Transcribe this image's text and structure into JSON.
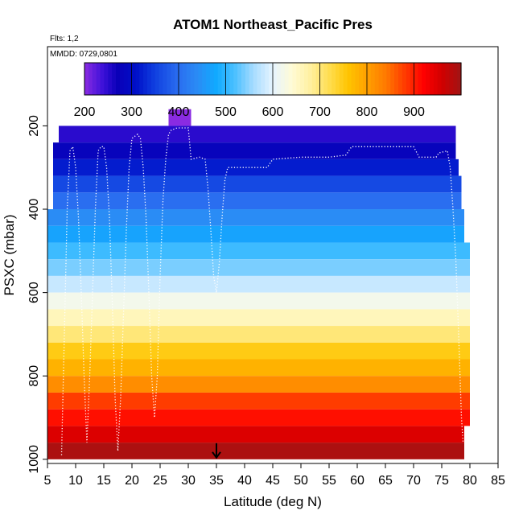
{
  "chart_data": {
    "type": "heatmap",
    "title": "ATOM1 Northeast_Pacific Pres",
    "subtitle": "Flts: 1,2",
    "annotation": "MMDD: 0729,0801",
    "xlabel": "Latitude (deg N)",
    "ylabel": "PSXC (mbar)",
    "xlim": [
      5,
      85
    ],
    "ylim": [
      1000,
      0
    ],
    "x_ticks": [
      5,
      10,
      15,
      20,
      25,
      30,
      35,
      40,
      45,
      50,
      55,
      60,
      65,
      70,
      75,
      80,
      85
    ],
    "y_ticks": [
      200,
      400,
      600,
      800,
      1000
    ],
    "colorbar": {
      "range": [
        200,
        1000
      ],
      "ticks": [
        200,
        300,
        400,
        500,
        600,
        700,
        800,
        900
      ],
      "placement": "top"
    },
    "band_step_mbar": 40,
    "bands": [
      {
        "p": 180,
        "lat": [
          26.5,
          30.5
        ],
        "value": 200
      },
      {
        "p": 220,
        "lat": [
          7,
          77.5
        ],
        "value": 250
      },
      {
        "p": 260,
        "lat": [
          6,
          77.5
        ],
        "value": 280
      },
      {
        "p": 300,
        "lat": [
          6,
          78
        ],
        "value": 320
      },
      {
        "p": 340,
        "lat": [
          6,
          78.5
        ],
        "value": 360
      },
      {
        "p": 380,
        "lat": [
          6,
          78.5
        ],
        "value": 400
      },
      {
        "p": 420,
        "lat": [
          5,
          79
        ],
        "value": 440
      },
      {
        "p": 460,
        "lat": [
          5,
          79
        ],
        "value": 470
      },
      {
        "p": 500,
        "lat": [
          5,
          80
        ],
        "value": 510
      },
      {
        "p": 540,
        "lat": [
          5,
          80
        ],
        "value": 540
      },
      {
        "p": 580,
        "lat": [
          5,
          80
        ],
        "value": 580
      },
      {
        "p": 620,
        "lat": [
          5,
          80
        ],
        "value": 620
      },
      {
        "p": 660,
        "lat": [
          5,
          80
        ],
        "value": 660
      },
      {
        "p": 700,
        "lat": [
          5,
          80
        ],
        "value": 700
      },
      {
        "p": 740,
        "lat": [
          5,
          80
        ],
        "value": 750
      },
      {
        "p": 780,
        "lat": [
          5,
          80
        ],
        "value": 780
      },
      {
        "p": 820,
        "lat": [
          5,
          80
        ],
        "value": 820
      },
      {
        "p": 860,
        "lat": [
          5,
          80
        ],
        "value": 880
      },
      {
        "p": 900,
        "lat": [
          5,
          80
        ],
        "value": 910
      },
      {
        "p": 940,
        "lat": [
          5,
          79
        ],
        "value": 950
      },
      {
        "p": 980,
        "lat": [
          5,
          79
        ],
        "value": 990
      }
    ],
    "flight_track": [
      [
        7.5,
        990
      ],
      [
        8,
        700
      ],
      [
        8.5,
        400
      ],
      [
        9,
        260
      ],
      [
        9.5,
        250
      ],
      [
        10,
        300
      ],
      [
        10.5,
        420
      ],
      [
        11,
        600
      ],
      [
        11.5,
        800
      ],
      [
        12,
        960
      ],
      [
        12.5,
        800
      ],
      [
        13,
        600
      ],
      [
        13.5,
        400
      ],
      [
        14,
        260
      ],
      [
        14.5,
        250
      ],
      [
        15,
        250
      ],
      [
        15.5,
        300
      ],
      [
        16,
        420
      ],
      [
        16.5,
        620
      ],
      [
        17,
        850
      ],
      [
        17.5,
        980
      ],
      [
        18,
        850
      ],
      [
        18.5,
        650
      ],
      [
        19,
        450
      ],
      [
        19.5,
        300
      ],
      [
        20,
        230
      ],
      [
        21,
        220
      ],
      [
        21.5,
        230
      ],
      [
        22,
        300
      ],
      [
        22.5,
        420
      ],
      [
        23,
        600
      ],
      [
        23.5,
        800
      ],
      [
        24,
        900
      ],
      [
        24.5,
        800
      ],
      [
        25,
        560
      ],
      [
        25.5,
        380
      ],
      [
        26,
        280
      ],
      [
        26.5,
        220
      ],
      [
        27,
        210
      ],
      [
        28,
        205
      ],
      [
        29,
        205
      ],
      [
        30,
        205
      ],
      [
        30.5,
        280
      ],
      [
        32,
        275
      ],
      [
        33,
        280
      ],
      [
        33.5,
        350
      ],
      [
        34,
        450
      ],
      [
        34.5,
        560
      ],
      [
        35,
        600
      ],
      [
        35.5,
        530
      ],
      [
        36,
        420
      ],
      [
        36.5,
        330
      ],
      [
        37,
        300
      ],
      [
        40,
        300
      ],
      [
        44,
        300
      ],
      [
        45,
        280
      ],
      [
        50,
        275
      ],
      [
        55,
        275
      ],
      [
        58,
        270
      ],
      [
        59,
        250
      ],
      [
        65,
        250
      ],
      [
        70,
        250
      ],
      [
        71,
        275
      ],
      [
        74,
        275
      ],
      [
        74.5,
        265
      ],
      [
        76,
        260
      ],
      [
        76.5,
        300
      ],
      [
        77,
        400
      ],
      [
        77.5,
        520
      ],
      [
        78,
        700
      ],
      [
        78.5,
        900
      ],
      [
        78.8,
        960
      ]
    ],
    "arrow_marker": {
      "lat": 35,
      "p": 1000
    }
  }
}
